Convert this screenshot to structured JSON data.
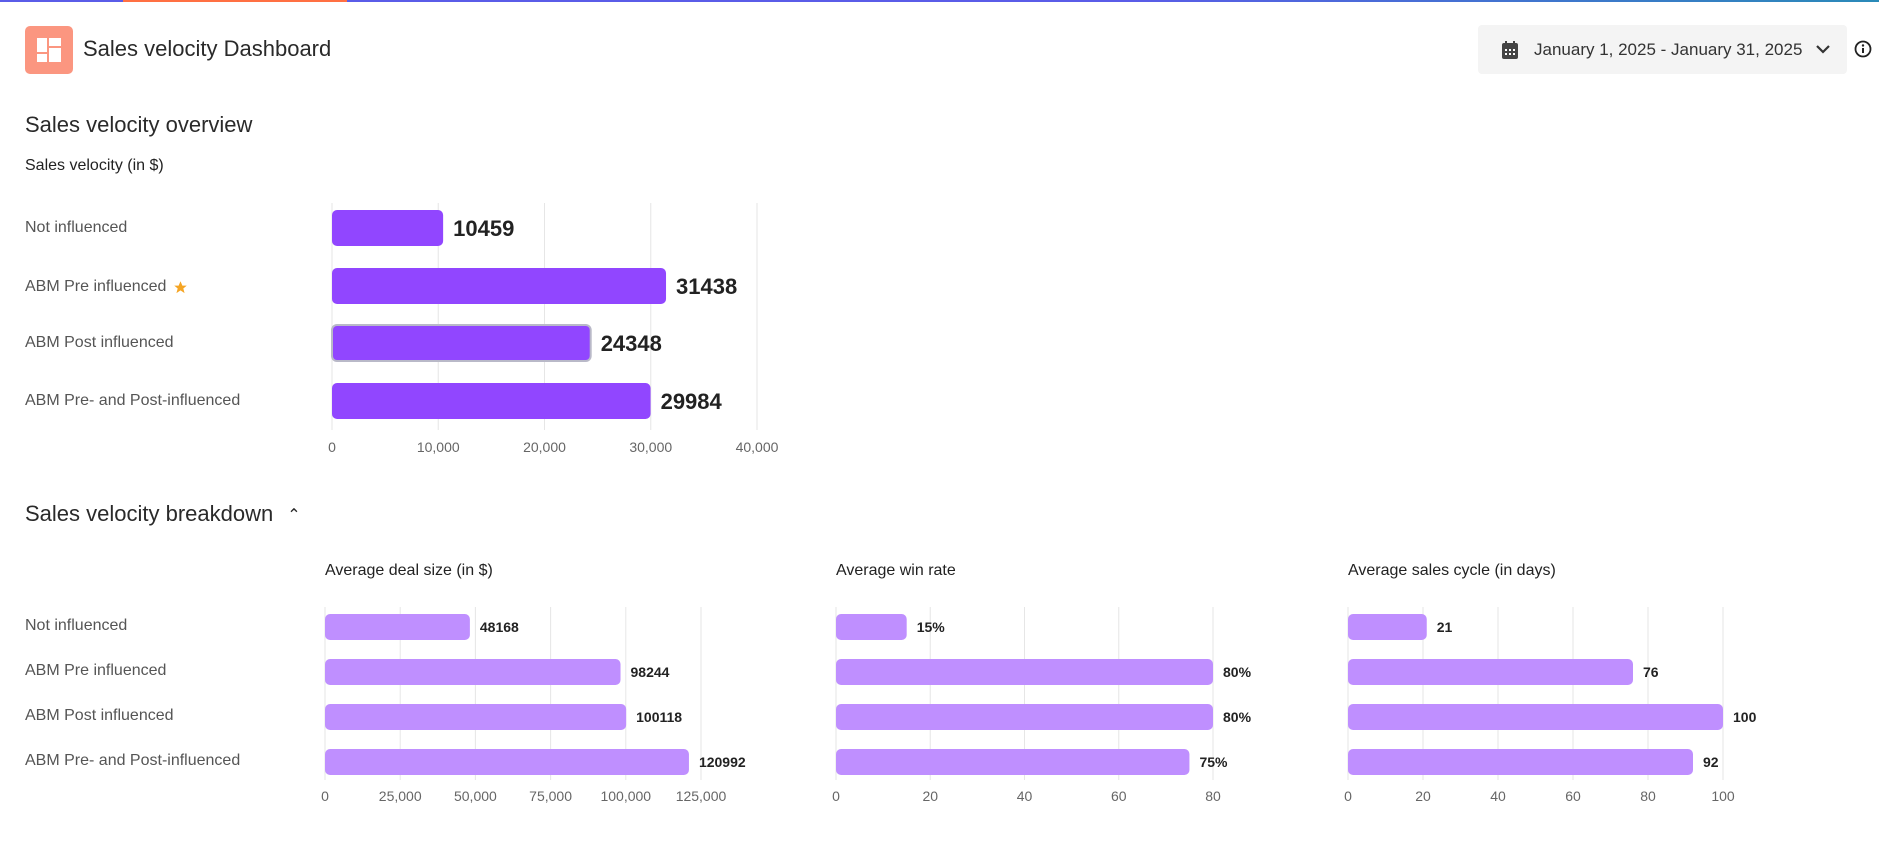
{
  "header": {
    "title": "Sales velocity Dashboard",
    "logo_icon": "dashboard-layout-icon",
    "logo_color": "#fb9680",
    "date_range": "January 1, 2025 - January 31, 2025",
    "calendar_icon": "calendar-icon",
    "dropdown_icon": "chevron-down-icon",
    "info_icon": "info-icon"
  },
  "overview": {
    "heading": "Sales velocity overview",
    "chart_title": "Sales velocity (in $)"
  },
  "breakdown": {
    "heading": "Sales velocity breakdown",
    "toggle_icon": "chevron-up-icon"
  },
  "categories": [
    "Not influenced",
    "ABM Pre influenced",
    "ABM Post influenced",
    "ABM Pre- and Post-influenced"
  ],
  "starred_category": "ABM Pre influenced",
  "colors": {
    "overview_bar": "#9146ff",
    "breakdown_bar": "#bf8fff",
    "star": "#f5a524"
  },
  "chart_data": [
    {
      "type": "bar",
      "orientation": "horizontal",
      "title": "Sales velocity (in $)",
      "categories": [
        "Not influenced",
        "ABM Pre influenced",
        "ABM Post influenced",
        "ABM Pre- and Post-influenced"
      ],
      "values": [
        10459,
        31438,
        24348,
        29984
      ],
      "value_labels": [
        "10459",
        "31438",
        "24348",
        "29984"
      ],
      "xlim": [
        0,
        40000
      ],
      "ticks": [
        0,
        10000,
        20000,
        30000,
        40000
      ],
      "tick_labels": [
        "0",
        "10,000",
        "20,000",
        "30,000",
        "40,000"
      ],
      "grid": true
    },
    {
      "type": "bar",
      "orientation": "horizontal",
      "title": "Average deal size (in $)",
      "categories": [
        "Not influenced",
        "ABM Pre influenced",
        "ABM Post influenced",
        "ABM Pre- and Post-influenced"
      ],
      "values": [
        48168,
        98244,
        100118,
        120992
      ],
      "value_labels": [
        "48168",
        "98244",
        "100118",
        "120992"
      ],
      "xlim": [
        0,
        125000
      ],
      "ticks": [
        0,
        25000,
        50000,
        75000,
        100000,
        125000
      ],
      "tick_labels": [
        "0",
        "25,000",
        "50,000",
        "75,000",
        "100,000",
        "125,000"
      ],
      "grid": true
    },
    {
      "type": "bar",
      "orientation": "horizontal",
      "title": "Average win rate",
      "categories": [
        "Not influenced",
        "ABM Pre influenced",
        "ABM Post influenced",
        "ABM Pre- and Post-influenced"
      ],
      "values": [
        15,
        80,
        80,
        75
      ],
      "value_labels": [
        "15%",
        "80%",
        "80%",
        "75%"
      ],
      "xlim": [
        0,
        80
      ],
      "ticks": [
        0,
        20,
        40,
        60,
        80
      ],
      "tick_labels": [
        "0",
        "20",
        "40",
        "60",
        "80"
      ],
      "grid": true
    },
    {
      "type": "bar",
      "orientation": "horizontal",
      "title": "Average sales cycle (in days)",
      "categories": [
        "Not influenced",
        "ABM Pre influenced",
        "ABM Post influenced",
        "ABM Pre- and Post-influenced"
      ],
      "values": [
        21,
        76,
        100,
        92
      ],
      "value_labels": [
        "21",
        "76",
        "100",
        "92"
      ],
      "xlim": [
        0,
        100
      ],
      "ticks": [
        0,
        20,
        40,
        60,
        80,
        100
      ],
      "tick_labels": [
        "0",
        "20",
        "40",
        "60",
        "80",
        "100"
      ],
      "grid": true
    }
  ]
}
